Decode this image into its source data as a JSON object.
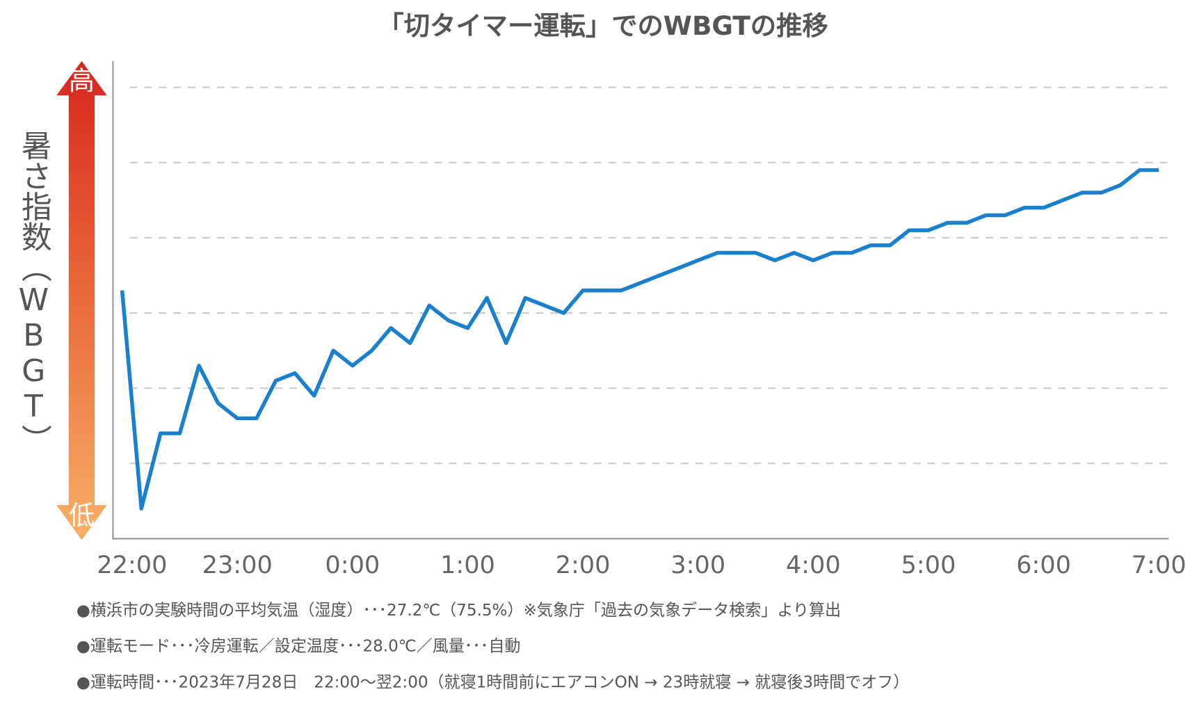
{
  "chart_data": {
    "type": "line",
    "title": "「切タイマー運転」でのWBGTの推移",
    "y_label": "暑さ指数（WBGT）",
    "high_label": "高",
    "low_label": "低",
    "categories": [
      "22:00",
      null,
      null,
      null,
      null,
      null,
      "23:00",
      null,
      null,
      null,
      null,
      null,
      "0:00",
      null,
      null,
      null,
      null,
      null,
      "1:00",
      null,
      null,
      null,
      null,
      null,
      "2:00",
      null,
      null,
      null,
      null,
      null,
      "3:00",
      null,
      null,
      null,
      null,
      null,
      "4:00",
      null,
      null,
      null,
      null,
      null,
      "5:00",
      null,
      null,
      null,
      null,
      null,
      "6:00",
      null,
      null,
      null,
      null,
      null,
      "7:00"
    ],
    "series": [
      {
        "name": "WBGT",
        "color": "#1a7fcc",
        "values": [
          3.3,
          0.4,
          1.4,
          1.4,
          2.3,
          1.8,
          1.6,
          1.6,
          2.1,
          2.2,
          1.9,
          2.5,
          2.3,
          2.5,
          2.8,
          2.6,
          3.1,
          2.9,
          2.8,
          3.2,
          2.6,
          3.2,
          3.1,
          3.0,
          3.3,
          3.3,
          3.3,
          3.4,
          3.5,
          3.6,
          3.7,
          3.8,
          3.8,
          3.8,
          3.7,
          3.8,
          3.7,
          3.8,
          3.8,
          3.9,
          3.9,
          4.1,
          4.1,
          4.2,
          4.2,
          4.3,
          4.3,
          4.4,
          4.4,
          4.5,
          4.6,
          4.6,
          4.7,
          4.9,
          4.9
        ]
      }
    ],
    "ylim": [
      0,
      6.35
    ],
    "yticks": [
      1,
      2,
      3,
      4,
      5,
      6
    ],
    "grid": true,
    "notes": [
      "●横浜市の実験時間の平均気温（湿度）･･･27.2℃（75.5%）※気象庁「過去の気象データ検索」より算出",
      "●運転モード･･･冷房運転／設定温度･･･28.0℃／風量･･･自動",
      "●運転時間･･･2023年7月28日　22:00～翌2:00（就寝1時間前にエアコンON → 23時就寝 → 就寝後3時間でオフ）"
    ]
  }
}
